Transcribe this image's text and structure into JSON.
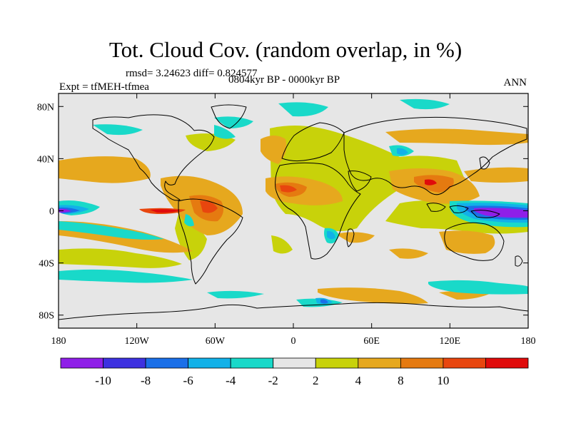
{
  "header": {
    "title": "Tot. Cloud Cov. (random overlap, in %)",
    "stats": "rmsd= 3.24623  diff= 0.824577",
    "experiment": "Expt = tfMEH-tfmea",
    "period": "0804kyr BP - 0000kyr BP",
    "season": "ANN"
  },
  "map": {
    "projection": "cylindrical equidistant",
    "lat_ticks": [
      {
        "value": 80,
        "label": "80N"
      },
      {
        "value": 40,
        "label": "40N"
      },
      {
        "value": 0,
        "label": "0"
      },
      {
        "value": -40,
        "label": "40S"
      },
      {
        "value": -80,
        "label": "80S"
      }
    ],
    "lon_ticks": [
      {
        "value": 0,
        "label": "180"
      },
      {
        "value": 60,
        "label": "120W"
      },
      {
        "value": 120,
        "label": "60W"
      },
      {
        "value": 180,
        "label": "0"
      },
      {
        "value": 240,
        "label": "60E"
      },
      {
        "value": 300,
        "label": "120E"
      },
      {
        "value": 360,
        "label": "180"
      }
    ],
    "lon_range_east_from_dateline": [
      0,
      360
    ],
    "lat_range": [
      -90,
      90
    ],
    "background_color": "#e6e6e6",
    "coastline_color": "#000000"
  },
  "colorbar": {
    "colors": [
      "#8f1fe8",
      "#3d31e0",
      "#1a6fe8",
      "#12b1e8",
      "#19d9c9",
      "#e6e6e6",
      "#c8d20a",
      "#e6a81e",
      "#e57a10",
      "#e8460e",
      "#e00b0b"
    ],
    "labels": [
      "-10",
      "-8",
      "-6",
      "-4",
      "-2",
      "2",
      "4",
      "8",
      "10"
    ],
    "label_colors": [
      "#000000",
      "#000000",
      "#000000",
      "#000000",
      "#000000",
      "#000000",
      "#000000",
      "#000000",
      "#000000"
    ],
    "label_boundaries": [
      1,
      2,
      3,
      4,
      5,
      6,
      7,
      8,
      9
    ]
  },
  "colors": {
    "c_yellow": "#c8d20a",
    "c_lightorange": "#e6a81e",
    "c_orange": "#e57a10",
    "c_darkorange": "#e8460e",
    "c_red": "#e00b0b",
    "c_teal": "#19d9c9",
    "c_cyan": "#12b1e8",
    "c_blue": "#1a6fe8",
    "c_darkblue": "#3d31e0",
    "c_purple": "#8f1fe8"
  }
}
